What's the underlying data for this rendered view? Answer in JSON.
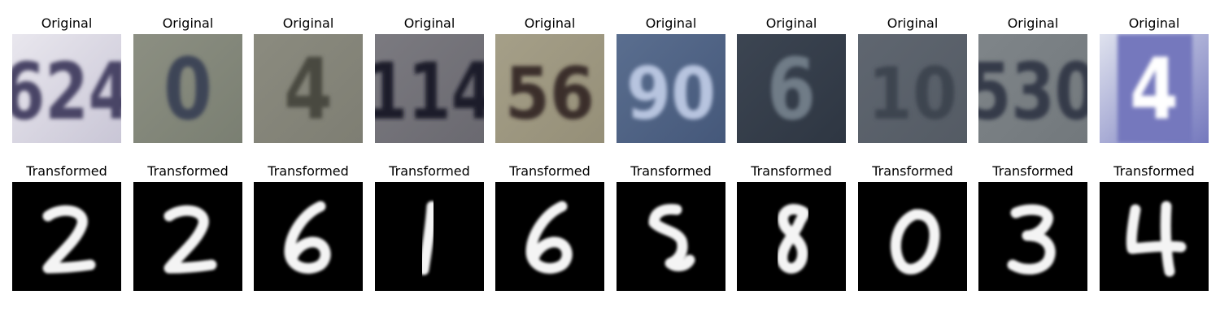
{
  "figure": {
    "rows": [
      {
        "title": "Original",
        "kind": "svhn",
        "panels": [
          {
            "digit": "624",
            "bg": "#e9e7ee",
            "ink": "#4a4466",
            "accent": "#c9c6d6"
          },
          {
            "digit": "0",
            "bg": "#8c8f82",
            "ink": "#3d4456",
            "accent": "#7a7f72"
          },
          {
            "digit": "4",
            "bg": "#8b8b7f",
            "ink": "#4a4a40",
            "accent": "#7e7e73"
          },
          {
            "digit": "114",
            "bg": "#7b7a80",
            "ink": "#1f1f2c",
            "accent": "#6a6970"
          },
          {
            "digit": "56",
            "bg": "#a59f88",
            "ink": "#3a2d2a",
            "accent": "#958f78"
          },
          {
            "digit": "90",
            "bg": "#5a6e8f",
            "ink": "#b7c4df",
            "accent": "#45587a"
          },
          {
            "digit": "6",
            "bg": "#3c4552",
            "ink": "#6f7c87",
            "accent": "#2e3642"
          },
          {
            "digit": "10",
            "bg": "#5f6670",
            "ink": "#3e4550",
            "accent": "#545b64"
          },
          {
            "digit": "530",
            "bg": "#7f8589",
            "ink": "#353b4a",
            "accent": "#72787c"
          },
          {
            "digit": "4",
            "bg": "#dfe2ee",
            "ink": "#ffffff",
            "accent": "#7478bd"
          }
        ]
      },
      {
        "title": "Transformed",
        "kind": "mnist",
        "panels": [
          {
            "digit": "2"
          },
          {
            "digit": "2"
          },
          {
            "digit": "6"
          },
          {
            "digit": "1"
          },
          {
            "digit": "6"
          },
          {
            "digit": "5"
          },
          {
            "digit": "8"
          },
          {
            "digit": "0"
          },
          {
            "digit": "3"
          },
          {
            "digit": "4"
          }
        ]
      }
    ]
  }
}
